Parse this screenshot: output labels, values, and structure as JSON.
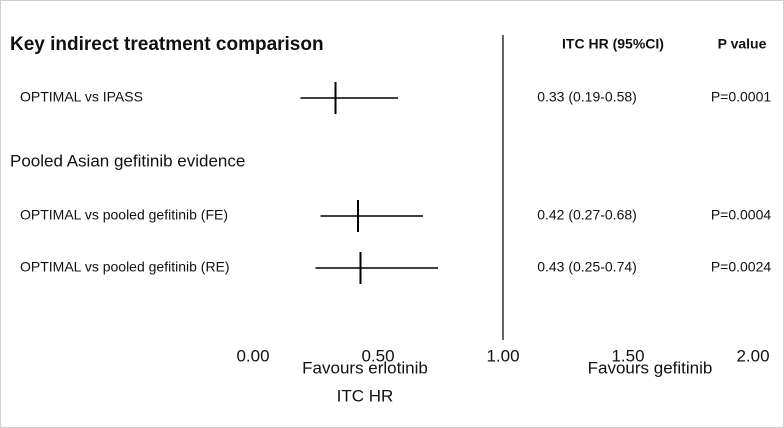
{
  "chart_data": {
    "type": "forest",
    "title": "Key indirect treatment comparison",
    "columns": [
      "ITC HR (95%CI)",
      "P value"
    ],
    "categories": [
      "OPTIMAL vs IPASS",
      "Pooled Asian gefitinib evidence",
      "OPTIMAL vs pooled gefitinib (FE)",
      "OPTIMAL vs pooled gefitinib (RE)"
    ],
    "values": [
      0.33,
      null,
      0.42,
      0.43
    ],
    "lower": [
      0.19,
      null,
      0.27,
      0.25
    ],
    "upper": [
      0.58,
      null,
      0.68,
      0.74
    ],
    "value_labels": [
      "0.33 (0.19-0.58)",
      null,
      "0.42 (0.27-0.68)",
      "0.43 (0.25-0.74)"
    ],
    "p_values": [
      "P=0.0001",
      null,
      "P=0.0004",
      "P=0.0024"
    ],
    "xlim": [
      0,
      2
    ],
    "xticks": [
      {
        "value": 0,
        "label": "0.00"
      },
      {
        "value": 0.5,
        "label": "0.50"
      },
      {
        "value": 1,
        "label": "1.00"
      },
      {
        "value": 1.5,
        "label": "1.50"
      },
      {
        "value": 2,
        "label": "2.00"
      }
    ],
    "reference": 1,
    "x_label": "ITC HR",
    "annotations": [
      "Favours erlotinib",
      "Favours gefitinib"
    ],
    "color": "#000000"
  }
}
